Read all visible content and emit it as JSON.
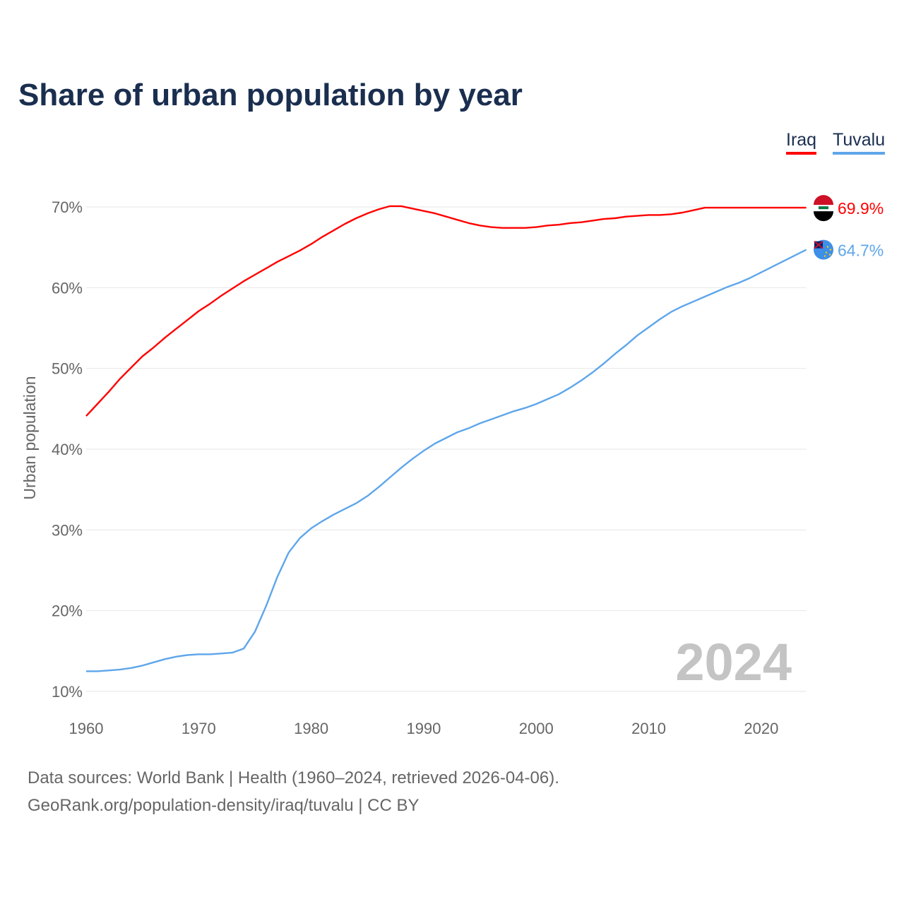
{
  "title": "Share of urban population by year",
  "legend": [
    {
      "label": "Iraq",
      "color": "#ff0000"
    },
    {
      "label": "Tuvalu",
      "color": "#5ea6ea"
    }
  ],
  "footer": {
    "line1": "Data sources: World Bank | Health (1960–2024, retrieved 2026-04-06).",
    "line2": "GeoRank.org/population-density/iraq/tuvalu | CC BY"
  },
  "chart_data": {
    "type": "line",
    "title": "Share of urban population by year",
    "xlabel": "",
    "ylabel": "Urban population",
    "xlim": [
      1960,
      2024
    ],
    "ylim": [
      10,
      70
    ],
    "xticks": [
      1960,
      1970,
      1980,
      1990,
      2000,
      2010,
      2020
    ],
    "yticks": [
      10,
      20,
      30,
      40,
      50,
      60,
      70
    ],
    "ytick_labels": [
      "10%",
      "20%",
      "30%",
      "40%",
      "50%",
      "60%",
      "70%"
    ],
    "grid": true,
    "legend_position": "top-right",
    "year_annotation": "2024",
    "x_start": 1960,
    "series": [
      {
        "name": "Iraq",
        "color": "#ff0000",
        "end_label": "69.9%",
        "flag": "iraq-flag",
        "values": [
          44.1,
          45.6,
          47.1,
          48.7,
          50.1,
          51.5,
          52.6,
          53.8,
          54.9,
          56.0,
          57.1,
          58.0,
          59.0,
          59.9,
          60.8,
          61.6,
          62.4,
          63.2,
          63.9,
          64.6,
          65.4,
          66.3,
          67.1,
          67.9,
          68.6,
          69.2,
          69.7,
          70.1,
          70.1,
          69.8,
          69.5,
          69.2,
          68.8,
          68.4,
          68.0,
          67.7,
          67.5,
          67.4,
          67.4,
          67.4,
          67.5,
          67.7,
          67.8,
          68.0,
          68.1,
          68.3,
          68.5,
          68.6,
          68.8,
          68.9,
          69.0,
          69.0,
          69.1,
          69.3,
          69.6,
          69.9,
          69.9,
          69.9,
          69.9,
          69.9,
          69.9,
          69.9,
          69.9,
          69.9,
          69.9
        ]
      },
      {
        "name": "Tuvalu",
        "color": "#5ea6ea",
        "end_label": "64.7%",
        "flag": "tuvalu-flag",
        "values": [
          12.5,
          12.5,
          12.6,
          12.7,
          12.9,
          13.2,
          13.6,
          14.0,
          14.3,
          14.5,
          14.6,
          14.6,
          14.7,
          14.8,
          15.3,
          17.4,
          20.6,
          24.2,
          27.2,
          29.0,
          30.2,
          31.1,
          31.9,
          32.6,
          33.3,
          34.2,
          35.3,
          36.5,
          37.7,
          38.8,
          39.8,
          40.7,
          41.4,
          42.1,
          42.6,
          43.2,
          43.7,
          44.2,
          44.7,
          45.1,
          45.6,
          46.2,
          46.8,
          47.6,
          48.5,
          49.5,
          50.6,
          51.8,
          52.9,
          54.1,
          55.1,
          56.1,
          57.0,
          57.7,
          58.3,
          58.9,
          59.5,
          60.1,
          60.6,
          61.2,
          61.9,
          62.6,
          63.3,
          64.0,
          64.7
        ]
      }
    ]
  }
}
